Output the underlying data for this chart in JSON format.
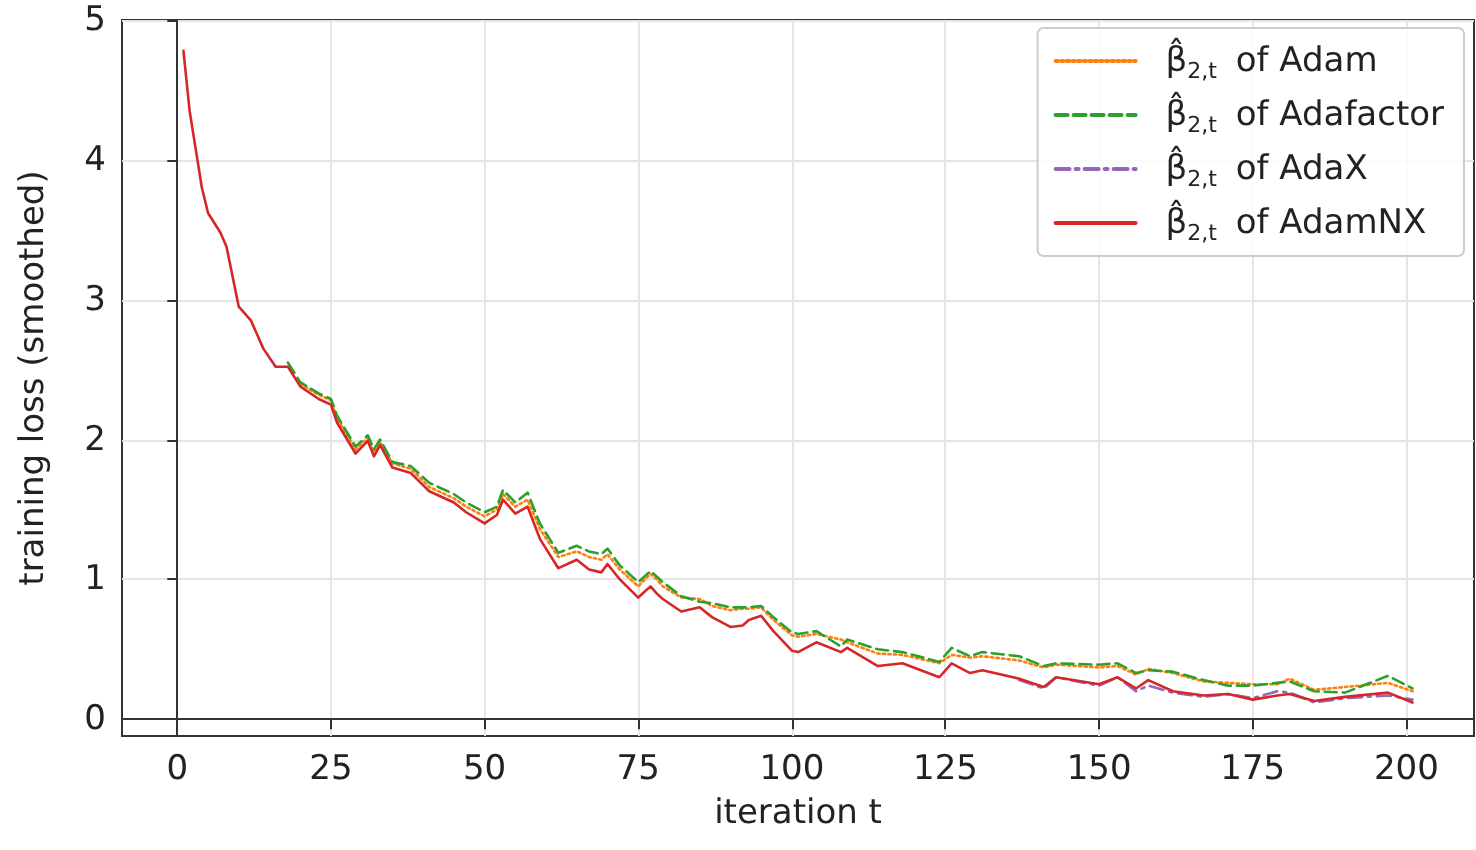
{
  "chart_data": {
    "type": "line",
    "xlabel": "iteration t",
    "ylabel": "training loss (smoothed)",
    "x": [
      1,
      2,
      4,
      5,
      7,
      8,
      10,
      12,
      14,
      16,
      18,
      20,
      23,
      25,
      26,
      29,
      31,
      32,
      33,
      35,
      38,
      41,
      45,
      47,
      50,
      52,
      53,
      55,
      57,
      59,
      62,
      65,
      67,
      69,
      70,
      72,
      75,
      77,
      78,
      79,
      82,
      85,
      87,
      90,
      92,
      93,
      95,
      97,
      100,
      101,
      104,
      108,
      109,
      114,
      118,
      124,
      126,
      129,
      131,
      137,
      141,
      143,
      150,
      153,
      156,
      158,
      162,
      167,
      171,
      175,
      179,
      181,
      185,
      190,
      197,
      201
    ],
    "series": [
      {
        "name": "β̂$_{2,t}$ of Adam",
        "color": "#ff7f0e",
        "line_style": "dotted",
        "values": [
          null,
          null,
          null,
          null,
          null,
          null,
          null,
          null,
          null,
          null,
          null,
          2.4,
          2.32,
          2.28,
          2.15,
          1.93,
          2.01,
          1.91,
          1.98,
          1.83,
          1.79,
          1.66,
          1.58,
          1.52,
          1.45,
          1.5,
          1.61,
          1.52,
          1.57,
          1.36,
          1.16,
          1.2,
          1.16,
          1.14,
          1.18,
          1.07,
          0.95,
          1.04,
          1.0,
          0.95,
          0.87,
          0.86,
          0.81,
          0.78,
          0.79,
          0.79,
          0.8,
          0.71,
          0.6,
          0.59,
          0.61,
          0.57,
          0.55,
          0.47,
          0.46,
          0.4,
          0.46,
          0.44,
          0.45,
          0.42,
          0.37,
          0.39,
          0.37,
          0.38,
          0.32,
          0.36,
          0.33,
          0.27,
          0.26,
          0.25,
          0.25,
          0.29,
          0.21,
          0.23,
          0.26,
          0.2
        ]
      },
      {
        "name": "β̂$_{2,t}$ of Adafactor",
        "color": "#2ca02c",
        "line_style": "dashed",
        "values": [
          null,
          null,
          null,
          null,
          null,
          null,
          null,
          null,
          null,
          null,
          2.55,
          2.41,
          2.33,
          2.29,
          2.17,
          1.95,
          2.03,
          1.93,
          2.0,
          1.84,
          1.81,
          1.69,
          1.61,
          1.55,
          1.48,
          1.52,
          1.64,
          1.55,
          1.62,
          1.4,
          1.19,
          1.24,
          1.2,
          1.18,
          1.22,
          1.1,
          0.98,
          1.06,
          1.02,
          0.98,
          0.88,
          0.84,
          0.83,
          0.8,
          0.8,
          0.8,
          0.81,
          0.73,
          0.62,
          0.61,
          0.63,
          0.52,
          0.57,
          0.5,
          0.48,
          0.41,
          0.51,
          0.45,
          0.48,
          0.45,
          0.38,
          0.4,
          0.39,
          0.4,
          0.33,
          0.35,
          0.34,
          0.28,
          0.24,
          0.24,
          0.26,
          0.27,
          0.2,
          0.19,
          0.31,
          0.22
        ]
      },
      {
        "name": "β̂$_{2,t}$ of AdaX",
        "color": "#9467bd",
        "line_style": "dashdot",
        "values": [
          null,
          null,
          null,
          null,
          null,
          null,
          null,
          null,
          null,
          null,
          null,
          null,
          null,
          null,
          null,
          null,
          null,
          null,
          null,
          null,
          null,
          null,
          null,
          null,
          null,
          null,
          null,
          null,
          null,
          null,
          null,
          null,
          null,
          null,
          null,
          null,
          null,
          null,
          null,
          null,
          null,
          null,
          null,
          null,
          null,
          null,
          null,
          null,
          null,
          null,
          null,
          null,
          null,
          null,
          null,
          null,
          null,
          null,
          null,
          0.28,
          0.22,
          0.3,
          0.24,
          0.3,
          0.2,
          0.24,
          0.19,
          0.16,
          0.18,
          0.15,
          0.2,
          0.19,
          0.12,
          0.15,
          0.17,
          0.14
        ]
      },
      {
        "name": "β̂$_{2,t}$ of AdamNX",
        "color": "#d62728",
        "line_style": "solid",
        "values": [
          4.78,
          4.35,
          3.8,
          3.62,
          3.48,
          3.38,
          2.95,
          2.85,
          2.65,
          2.52,
          2.52,
          2.38,
          2.29,
          2.25,
          2.12,
          1.9,
          1.99,
          1.88,
          1.96,
          1.8,
          1.76,
          1.63,
          1.55,
          1.48,
          1.4,
          1.46,
          1.57,
          1.47,
          1.52,
          1.29,
          1.08,
          1.14,
          1.07,
          1.05,
          1.11,
          1.0,
          0.87,
          0.95,
          0.9,
          0.86,
          0.77,
          0.8,
          0.73,
          0.66,
          0.67,
          0.71,
          0.74,
          0.63,
          0.49,
          0.48,
          0.55,
          0.48,
          0.51,
          0.38,
          0.4,
          0.3,
          0.4,
          0.33,
          0.35,
          0.29,
          0.23,
          0.3,
          0.25,
          0.3,
          0.22,
          0.28,
          0.2,
          0.17,
          0.18,
          0.14,
          0.17,
          0.18,
          0.13,
          0.16,
          0.19,
          0.12
        ]
      }
    ],
    "xlim": [
      -9,
      211
    ],
    "xticks": [
      0,
      25,
      50,
      75,
      100,
      125,
      150,
      175,
      200
    ],
    "ylim": [
      -0.12,
      5
    ],
    "yticks": [
      0,
      1,
      2,
      3,
      4,
      5
    ],
    "grid": true,
    "legend": "top right",
    "marker": "none"
  }
}
